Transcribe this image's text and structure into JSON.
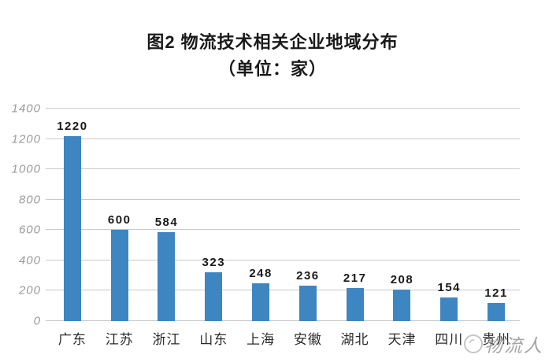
{
  "title": {
    "line1": "图2 物流技术相关企业地域分布",
    "line2": "（单位：家）"
  },
  "watermark": {
    "logo": "circle-logo",
    "text": "物流人"
  },
  "chart_data": {
    "type": "bar",
    "title": "图2 物流技术相关企业地域分布",
    "subtitle": "（单位：家）",
    "categories": [
      "广东",
      "江苏",
      "浙江",
      "山东",
      "上海",
      "安徽",
      "湖北",
      "天津",
      "四川",
      "贵州"
    ],
    "values": [
      1220,
      600,
      584,
      323,
      248,
      236,
      217,
      208,
      154,
      121
    ],
    "xlabel": "",
    "ylabel": "",
    "ylim": [
      0,
      1400
    ],
    "yticks": [
      0,
      200,
      400,
      600,
      800,
      1000,
      1200,
      1400
    ],
    "grid": true,
    "legend": false,
    "bar_color": "#3E86C2",
    "grid_color": "#C9C9C9",
    "ytick_label_color": "#9A9A9A",
    "xtick_label_color": "#2B2B2B",
    "value_label_color": "#1A1A1A",
    "background_color": "#FFFFFF"
  }
}
